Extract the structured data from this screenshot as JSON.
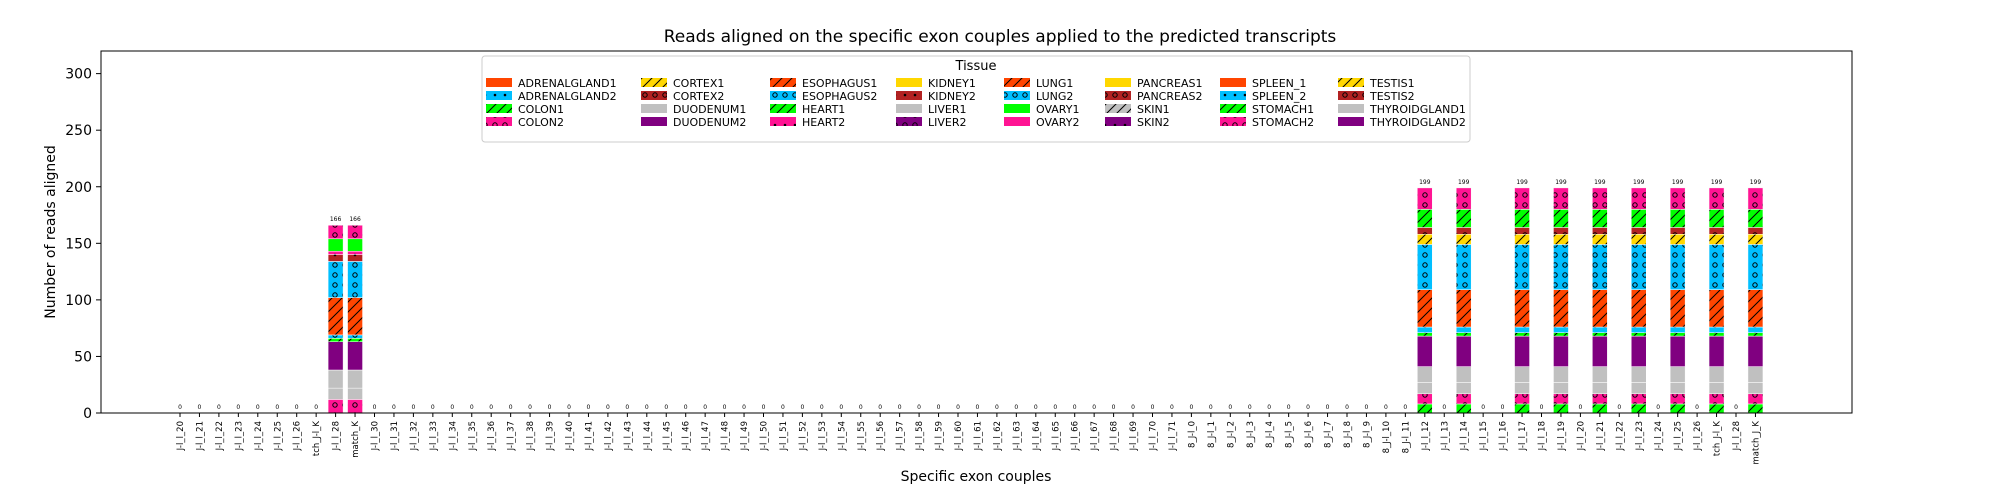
{
  "chart_data": {
    "type": "bar",
    "stacked": true,
    "title": "Reads aligned on the specific exon couples applied to the predicted transcripts",
    "xlabel": "Specific exon couples",
    "ylabel": "Number of reads aligned",
    "ylim": [
      0,
      320
    ],
    "yticks": [
      0,
      50,
      100,
      150,
      200,
      250,
      300
    ],
    "grid": false,
    "legend": {
      "title": "Tissue",
      "placement": "top-center",
      "columns": 9
    },
    "categories": [
      "J-l_l_20",
      "J-l_l_21",
      "J-l_l_22",
      "J-l_l_23",
      "J-l_l_24",
      "J-l_l_25",
      "J-l_l_26",
      "tch_J-l_K",
      "J-l_l_28",
      "match_K",
      "J-l_l_30",
      "J-l_l_31",
      "J-l_l_32",
      "J-l_l_33",
      "J-l_l_34",
      "J-l_l_35",
      "J-l_l_36",
      "J-l_l_37",
      "J-l_l_38",
      "J-l_l_39",
      "J-l_l_40",
      "J-l_l_41",
      "J-l_l_42",
      "J-l_l_43",
      "J-l_l_44",
      "J-l_l_45",
      "J-l_l_46",
      "J-l_l_47",
      "J-l_l_48",
      "J-l_l_49",
      "J-l_l_50",
      "J-l_l_51",
      "J-l_l_52",
      "J-l_l_53",
      "J-l_l_54",
      "J-l_l_55",
      "J-l_l_56",
      "J-l_l_57",
      "J-l_l_58",
      "J-l_l_59",
      "J-l_l_60",
      "J-l_l_61",
      "J-l_l_62",
      "J-l_l_63",
      "J-l_l_64",
      "J-l_l_65",
      "J-l_l_66",
      "J-l_l_67",
      "J-l_l_68",
      "J-l_l_69",
      "J-l_l_70",
      "J-l_l_71",
      "8_J-l_0",
      "8_J-l_1",
      "8_J-l_2",
      "8_J-l_3",
      "8_J-l_4",
      "8_J-l_5",
      "8_J-l_6",
      "8_J-l_7",
      "8_J-l_8",
      "8_J-l_9",
      "8_J-l_10",
      "8_J-l_11",
      "J-l_l_12",
      "J-l_l_13",
      "J-l_l_14",
      "J-l_l_15",
      "J-l_l_16",
      "J-l_l_17",
      "J-l_l_18",
      "J-l_l_19",
      "J-l_l_20",
      "J-l_l_21",
      "J-l_l_22",
      "J-l_l_23",
      "J-l_l_24",
      "J-l_l_25",
      "J-l_l_26",
      "tch_J-l_K",
      "J-l_l_28",
      "match_J_K"
    ],
    "totals": [
      0,
      0,
      0,
      0,
      0,
      0,
      0,
      0,
      166,
      166,
      0,
      0,
      0,
      0,
      0,
      0,
      0,
      0,
      0,
      0,
      0,
      0,
      0,
      0,
      0,
      0,
      0,
      0,
      0,
      0,
      0,
      0,
      0,
      0,
      0,
      0,
      0,
      0,
      0,
      0,
      0,
      0,
      0,
      0,
      0,
      0,
      0,
      0,
      0,
      0,
      0,
      0,
      0,
      0,
      0,
      0,
      0,
      0,
      0,
      0,
      0,
      0,
      0,
      0,
      199,
      0,
      199,
      0,
      0,
      199,
      0,
      199,
      0,
      199,
      0,
      199,
      0,
      199,
      0,
      199,
      0,
      199
    ],
    "series": [
      {
        "name": "ADRENALGLAND1",
        "color": "#ff4500",
        "hatch": "none"
      },
      {
        "name": "ADRENALGLAND2",
        "color": "#00bfff",
        "hatch": "dots"
      },
      {
        "name": "COLON1",
        "color": "#00ff00",
        "hatch": "diag"
      },
      {
        "name": "COLON2",
        "color": "#ff1493",
        "hatch": "rings"
      },
      {
        "name": "CORTEX1",
        "color": "#ffd700",
        "hatch": "diag"
      },
      {
        "name": "CORTEX2",
        "color": "#b22222",
        "hatch": "rings"
      },
      {
        "name": "DUODENUM1",
        "color": "#c0c0c0",
        "hatch": "none"
      },
      {
        "name": "DUODENUM2",
        "color": "#800080",
        "hatch": "none"
      },
      {
        "name": "ESOPHAGUS1",
        "color": "#ff4500",
        "hatch": "diag"
      },
      {
        "name": "ESOPHAGUS2",
        "color": "#00bfff",
        "hatch": "rings"
      },
      {
        "name": "HEART1",
        "color": "#00ff00",
        "hatch": "diag"
      },
      {
        "name": "HEART2",
        "color": "#ff1493",
        "hatch": "dots"
      },
      {
        "name": "KIDNEY1",
        "color": "#ffd700",
        "hatch": "none"
      },
      {
        "name": "KIDNEY2",
        "color": "#b22222",
        "hatch": "dots"
      },
      {
        "name": "LIVER1",
        "color": "#c0c0c0",
        "hatch": "none"
      },
      {
        "name": "LIVER2",
        "color": "#800080",
        "hatch": "rings"
      },
      {
        "name": "LUNG1",
        "color": "#ff4500",
        "hatch": "diag"
      },
      {
        "name": "LUNG2",
        "color": "#00bfff",
        "hatch": "rings"
      },
      {
        "name": "OVARY1",
        "color": "#00ff00",
        "hatch": "none"
      },
      {
        "name": "OVARY2",
        "color": "#ff1493",
        "hatch": "none"
      },
      {
        "name": "PANCREAS1",
        "color": "#ffd700",
        "hatch": "none"
      },
      {
        "name": "PANCREAS2",
        "color": "#b22222",
        "hatch": "rings"
      },
      {
        "name": "SKIN1",
        "color": "#c0c0c0",
        "hatch": "diag"
      },
      {
        "name": "SKIN2",
        "color": "#800080",
        "hatch": "dots"
      },
      {
        "name": "SPLEEN_1",
        "color": "#ff4500",
        "hatch": "none"
      },
      {
        "name": "SPLEEN_2",
        "color": "#00bfff",
        "hatch": "dots"
      },
      {
        "name": "STOMACH1",
        "color": "#00ff00",
        "hatch": "diag"
      },
      {
        "name": "STOMACH2",
        "color": "#ff1493",
        "hatch": "rings"
      },
      {
        "name": "TESTIS1",
        "color": "#ffd700",
        "hatch": "diag"
      },
      {
        "name": "TESTIS2",
        "color": "#b22222",
        "hatch": "rings"
      },
      {
        "name": "THYROIDGLAND1",
        "color": "#c0c0c0",
        "hatch": "none"
      },
      {
        "name": "THYROIDGLAND2",
        "color": "#800080",
        "hatch": "none"
      }
    ],
    "profiles": {
      "166": [
        [
          "COLON2",
          12
        ],
        [
          "THYROIDGLAND1",
          10
        ],
        [
          "DUODENUM1",
          16
        ],
        [
          "DUODENUM2",
          25
        ],
        [
          "HEART1",
          3
        ],
        [
          "ESOPHAGUS2",
          3
        ],
        [
          "ESOPHAGUS1",
          33
        ],
        [
          "LUNG2",
          32
        ],
        [
          "KIDNEY2",
          6
        ],
        [
          "HEART2",
          3
        ],
        [
          "OVARY1",
          11
        ],
        [
          "COLON2",
          12
        ]
      ],
      "199": [
        [
          "COLON1",
          8
        ],
        [
          "STOMACH2",
          9
        ],
        [
          "THYROIDGLAND1",
          10
        ],
        [
          "DUODENUM1",
          14
        ],
        [
          "DUODENUM2",
          27
        ],
        [
          "HEART1",
          3
        ],
        [
          "ESOPHAGUS2",
          5
        ],
        [
          "ESOPHAGUS1",
          33
        ],
        [
          "LUNG2",
          40
        ],
        [
          "CORTEX1",
          9
        ],
        [
          "TESTIS2",
          6
        ],
        [
          "STOMACH1",
          16
        ],
        [
          "COLON2",
          19
        ]
      ]
    }
  }
}
